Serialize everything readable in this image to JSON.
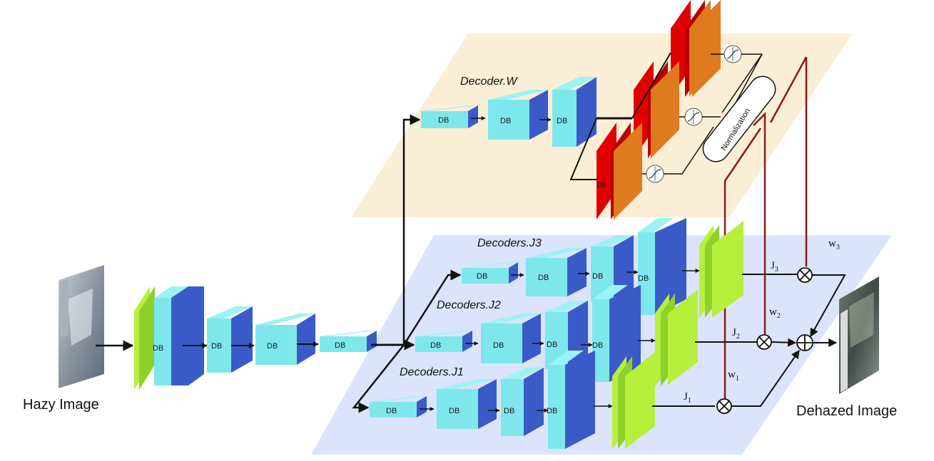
{
  "labels": {
    "hazy_image": "Hazy Image",
    "dehazed_image": "Dehazed Image",
    "decoder_w": "Decoder.W",
    "decoders_j1": "Decoders.J1",
    "decoders_j2": "Decoders.J2",
    "decoders_j3": "Decoders.J3",
    "normalization": "Normalization",
    "db": "DB"
  },
  "symbols": {
    "J_base": "J",
    "w_base": "w",
    "sub1": "1",
    "sub2": "2",
    "sub3": "3"
  },
  "colors": {
    "cyan_front": "#7ee7ec",
    "cyan_top": "#9df2f5",
    "blue_side": "#3a5bc7",
    "lime": "#b6f03c",
    "lime_dark": "#8fd02a",
    "red": "#e00000",
    "orange": "#e07a1f",
    "plane_w": "#fbeed6",
    "plane_j": "#dbe4fb",
    "weight_line": "#8b1a1a"
  }
}
